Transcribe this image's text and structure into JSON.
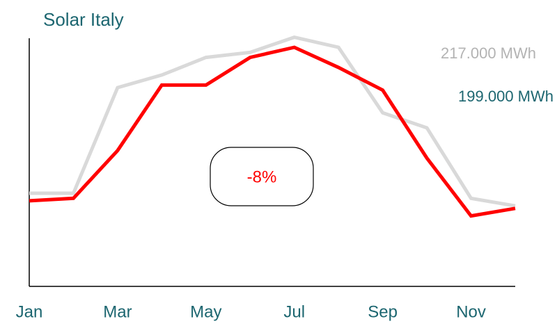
{
  "chart_data": {
    "type": "line",
    "title": "Solar Italy",
    "categories": [
      "Jan",
      null,
      "Mar",
      null,
      "May",
      null,
      "Jul",
      null,
      "Sep",
      null,
      "Nov",
      null
    ],
    "series": [
      {
        "name": "217.000 MWh",
        "color": "#d9d9d9",
        "label_color": "#b3b3b3",
        "values": [
          37,
          37,
          79,
          84,
          91,
          93,
          99,
          95,
          69,
          63,
          35,
          32
        ]
      },
      {
        "name": "199.000 MWh",
        "color": "#ff0000",
        "label_color": "#1c6670",
        "values": [
          34,
          35,
          54,
          80,
          80,
          91,
          95,
          87,
          78,
          51,
          28,
          31
        ]
      }
    ],
    "annotation": "-8%",
    "ylim": [
      0,
      100
    ]
  }
}
